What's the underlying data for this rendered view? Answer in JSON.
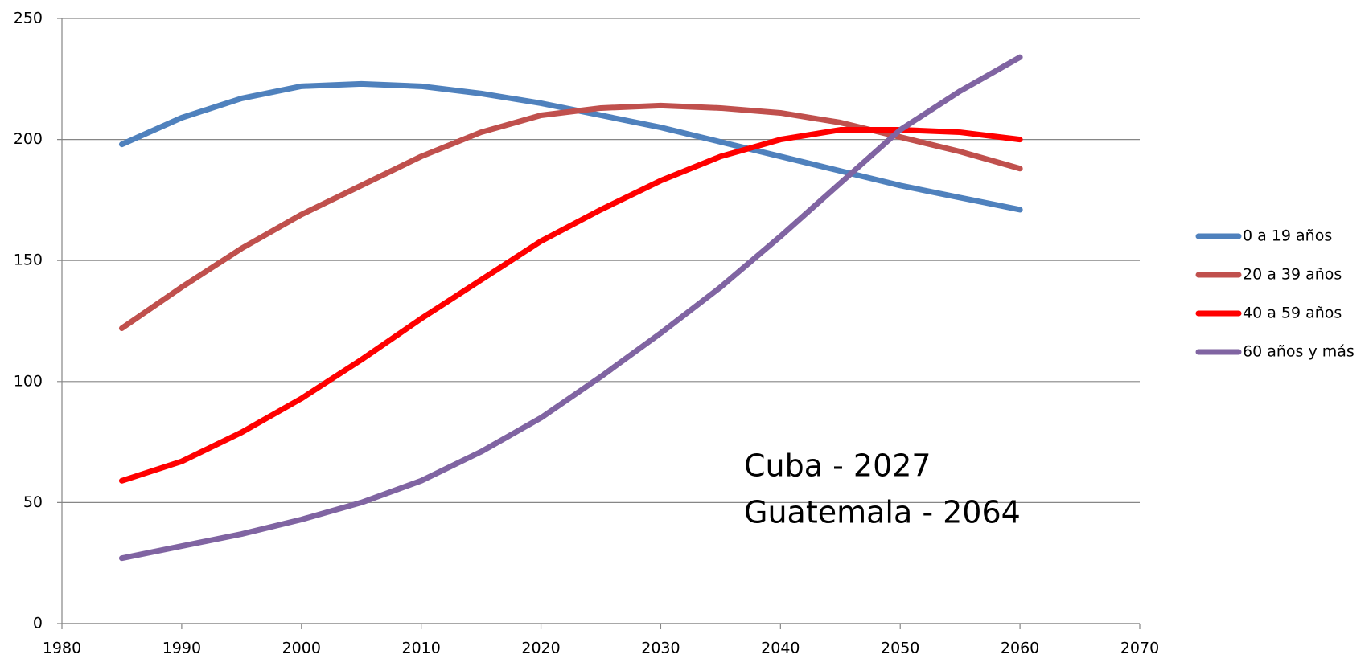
{
  "chart_data": {
    "type": "line",
    "x": [
      1985,
      1990,
      1995,
      2000,
      2005,
      2010,
      2015,
      2020,
      2025,
      2030,
      2035,
      2040,
      2045,
      2050,
      2055,
      2060
    ],
    "series": [
      {
        "name": "0 a 19 años",
        "color": "#4f81bd",
        "values": [
          198,
          209,
          217,
          222,
          223,
          222,
          219,
          215,
          210,
          205,
          199,
          193,
          187,
          181,
          176,
          171
        ]
      },
      {
        "name": "20 a 39 años",
        "color": "#c0504d",
        "values": [
          122,
          139,
          155,
          169,
          181,
          193,
          203,
          210,
          213,
          214,
          213,
          211,
          207,
          201,
          195,
          188
        ]
      },
      {
        "name": "40 a 59 años",
        "color": "#ff0000",
        "values": [
          59,
          67,
          79,
          93,
          109,
          126,
          142,
          158,
          171,
          183,
          193,
          200,
          204,
          204,
          203,
          200
        ]
      },
      {
        "name": "60 años y más",
        "color": "#8064a2",
        "values": [
          27,
          32,
          37,
          43,
          50,
          59,
          71,
          85,
          102,
          120,
          139,
          160,
          182,
          204,
          220,
          234
        ]
      }
    ],
    "xlim": [
      1980,
      2070
    ],
    "xticks": [
      1980,
      1990,
      2000,
      2010,
      2020,
      2030,
      2040,
      2050,
      2060,
      2070
    ],
    "ylim": [
      0,
      250
    ],
    "yticks": [
      0,
      50,
      100,
      150,
      200,
      250
    ],
    "grid": true,
    "legend": "right",
    "annotations": [
      "Cuba - 2027",
      "Guatemala - 2064"
    ]
  }
}
